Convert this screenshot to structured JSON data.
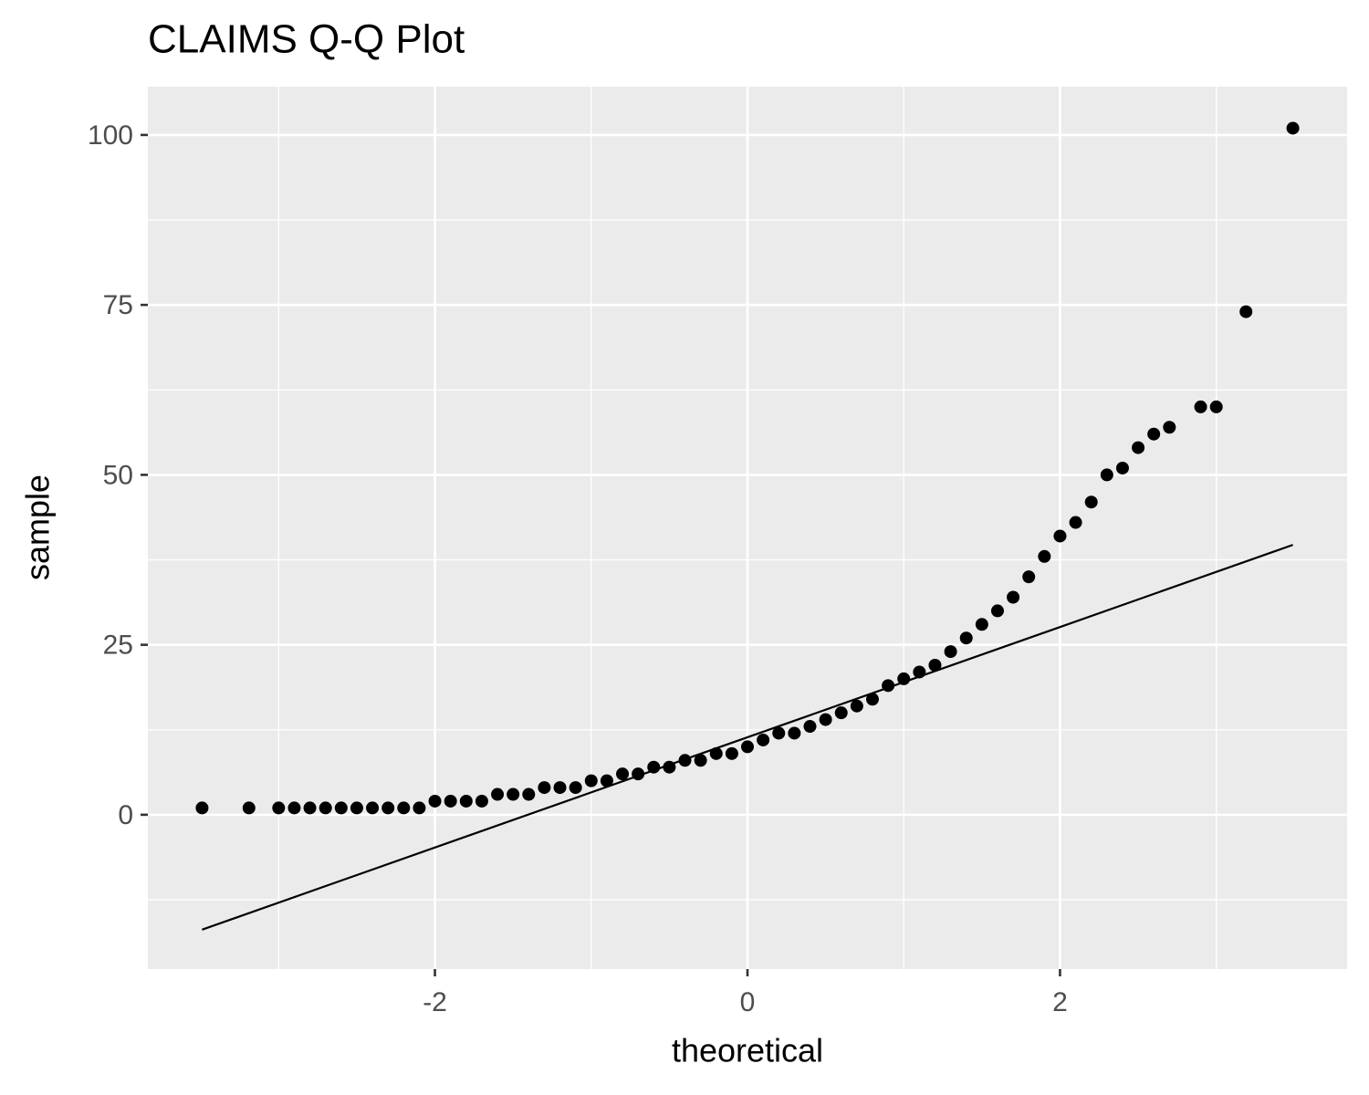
{
  "chart_data": {
    "type": "scatter",
    "title": "CLAIMS Q-Q Plot",
    "x_label": "theoretical",
    "y_label": "sample",
    "x": [
      -3.49,
      -3.19,
      -3.0,
      -2.9,
      -2.8,
      -2.7,
      -2.6,
      -2.5,
      -2.4,
      -2.3,
      -2.2,
      -2.1,
      -2.0,
      -1.9,
      -1.8,
      -1.7,
      -1.6,
      -1.5,
      -1.4,
      -1.3,
      -1.2,
      -1.1,
      -1.0,
      -0.9,
      -0.8,
      -0.7,
      -0.6,
      -0.5,
      -0.4,
      -0.3,
      -0.2,
      -0.1,
      0.0,
      0.1,
      0.2,
      0.3,
      0.4,
      0.5,
      0.6,
      0.7,
      0.8,
      0.9,
      1.0,
      1.1,
      1.2,
      1.3,
      1.4,
      1.5,
      1.6,
      1.7,
      1.8,
      1.9,
      2.0,
      2.1,
      2.2,
      2.3,
      2.4,
      2.5,
      2.6,
      2.7,
      2.9,
      3.0,
      3.19,
      3.49
    ],
    "values": [
      1,
      1,
      1,
      1,
      1,
      1,
      1,
      1,
      1,
      1,
      1,
      1,
      2,
      2,
      2,
      2,
      3,
      3,
      3,
      4,
      4,
      4,
      5,
      5,
      6,
      6,
      7,
      7,
      8,
      8,
      9,
      9,
      10,
      11,
      12,
      12,
      13,
      14,
      15,
      16,
      17,
      19,
      20,
      21,
      22,
      24,
      26,
      28,
      30,
      32,
      35,
      38,
      41,
      43,
      46,
      50,
      51,
      54,
      56,
      57,
      60,
      60,
      74,
      101
    ],
    "color": "#000000",
    "line": {
      "x": [
        -3.49,
        3.49
      ],
      "values": [
        -16.9,
        39.7
      ],
      "color": "#000000"
    },
    "xlim": [
      -3.837,
      3.837
    ],
    "ylim": [
      -22.7,
      107.1
    ],
    "xticks": [
      -2,
      0,
      2
    ],
    "yticks": [
      0,
      25,
      50,
      75,
      100
    ],
    "x_minor_ticks": [
      -3,
      -1,
      1,
      3
    ],
    "y_minor_ticks": [
      -12.5,
      12.5,
      37.5,
      62.5,
      87.5
    ],
    "grid": true
  }
}
